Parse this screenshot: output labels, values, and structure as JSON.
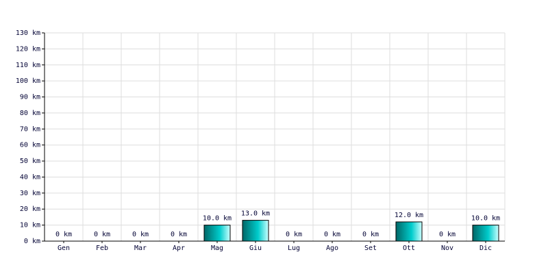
{
  "chart_data": {
    "type": "bar",
    "categories": [
      "Gen",
      "Feb",
      "Mar",
      "Apr",
      "Mag",
      "Giu",
      "Lug",
      "Ago",
      "Set",
      "Ott",
      "Nov",
      "Dic"
    ],
    "values": [
      0,
      0,
      0,
      0,
      10,
      13,
      0,
      0,
      0,
      12,
      0,
      10
    ],
    "value_labels": [
      "0 km",
      "0 km",
      "0 km",
      "0 km",
      "10.0 km",
      "13.0 km",
      "0 km",
      "0 km",
      "0 km",
      "12.0 km",
      "0 km",
      "10.0 km"
    ],
    "color": "#00cccc",
    "ylim": [
      0,
      130
    ],
    "yticks": [
      {
        "value": 0,
        "label": "0 km"
      },
      {
        "value": 10,
        "label": "10 km"
      },
      {
        "value": 20,
        "label": "20 km"
      },
      {
        "value": 30,
        "label": "30 km"
      },
      {
        "value": 40,
        "label": "40 km"
      },
      {
        "value": 50,
        "label": "50 km"
      },
      {
        "value": 60,
        "label": "60 km"
      },
      {
        "value": 70,
        "label": "70 km"
      },
      {
        "value": 80,
        "label": "80 km"
      },
      {
        "value": 90,
        "label": "90 km"
      },
      {
        "value": 100,
        "label": "100 km"
      },
      {
        "value": 110,
        "label": "110 km"
      },
      {
        "value": 120,
        "label": "120 km"
      },
      {
        "value": 130,
        "label": "130 km"
      }
    ],
    "grid": true
  }
}
